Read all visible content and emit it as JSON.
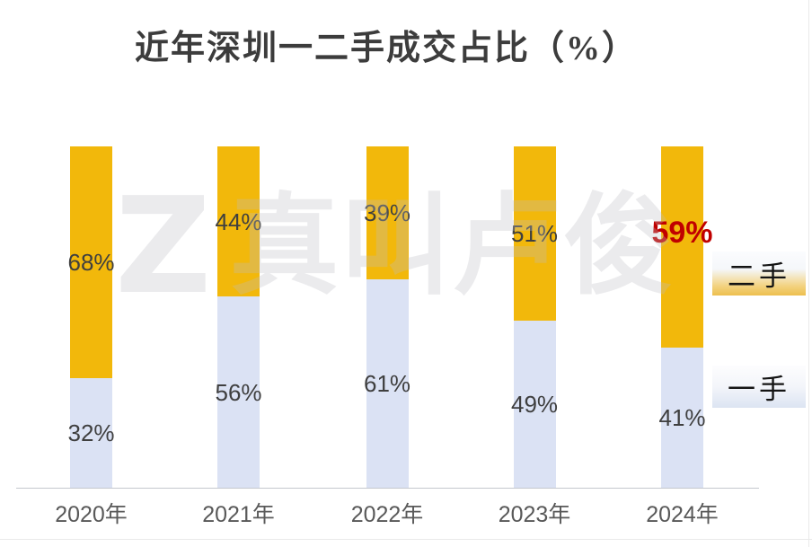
{
  "title": "近年深圳一二手成交占比（%）",
  "watermark": {
    "logo_glyph": "Z",
    "text": "真叫卢俊"
  },
  "legend": {
    "position": "right",
    "items": [
      {
        "label": "二手",
        "accent_color": "#F2B80B"
      },
      {
        "label": "一手",
        "accent_color": "#DBE2F4"
      }
    ]
  },
  "chart_data": {
    "type": "bar",
    "stacked": true,
    "orientation": "vertical",
    "title": "近年深圳一二手成交占比（%）",
    "categories": [
      "2020年",
      "2021年",
      "2022年",
      "2023年",
      "2024年"
    ],
    "series": [
      {
        "name": "一手",
        "position": "bottom",
        "color": "#DBE2F4",
        "values": [
          32,
          56,
          61,
          49,
          41
        ]
      },
      {
        "name": "二手",
        "position": "top",
        "color": "#F2B80B",
        "values": [
          68,
          44,
          39,
          51,
          59
        ]
      }
    ],
    "value_suffix": "%",
    "label_color": "#3F3F3F",
    "highlight": {
      "series_index": 1,
      "category_index": 4,
      "color": "#C00000",
      "bold": true
    },
    "ylim": [
      0,
      100
    ],
    "grid": false,
    "legend_position": "right"
  }
}
